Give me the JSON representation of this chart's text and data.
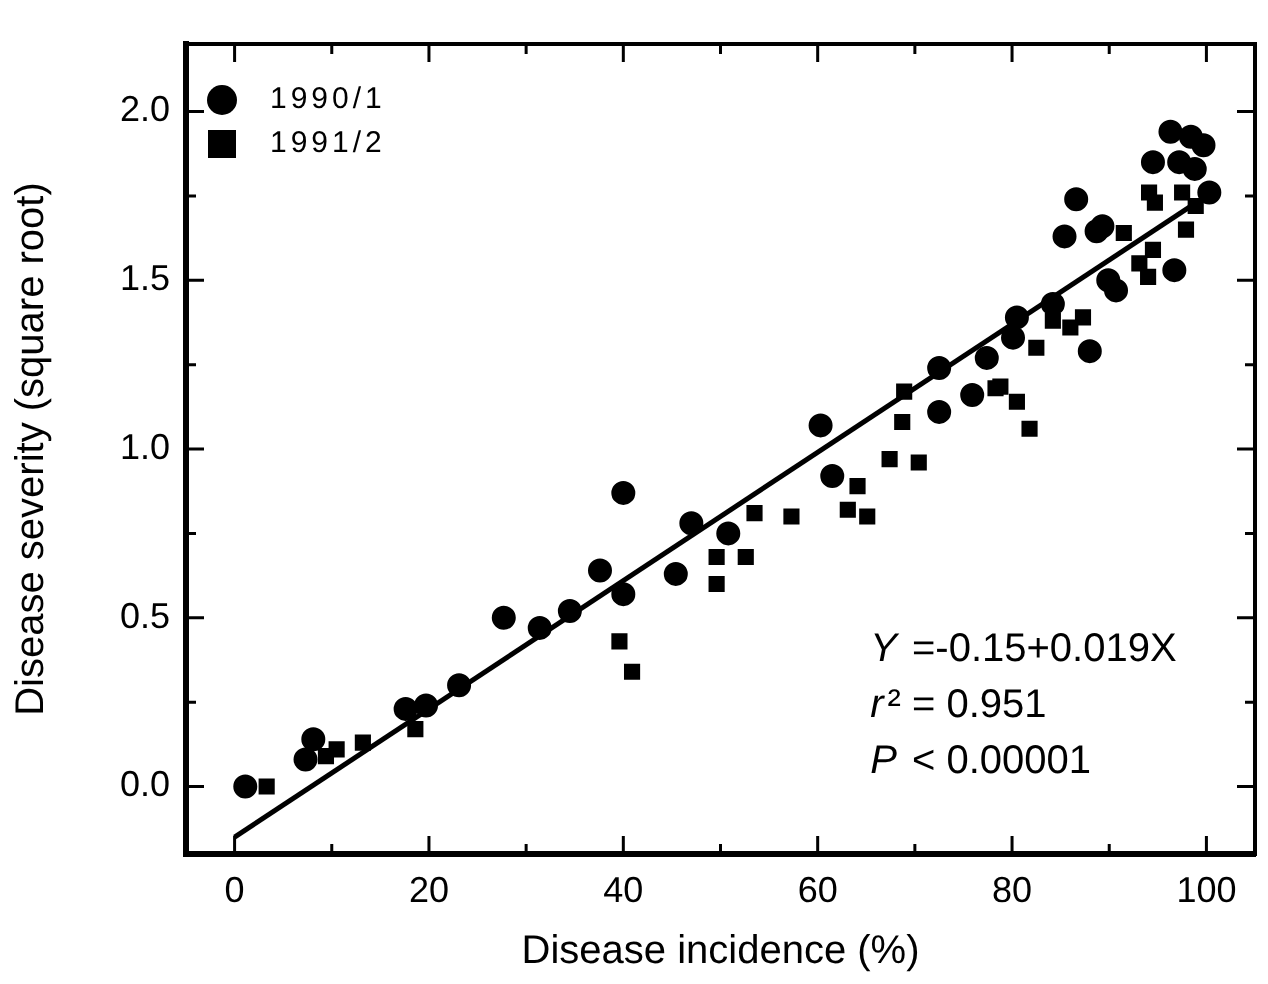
{
  "chart_data": {
    "type": "scatter",
    "xlabel": "Disease incidence (%)",
    "ylabel": "Disease severity (square root)",
    "xlim": [
      -5,
      105
    ],
    "ylim": [
      -0.2,
      2.2
    ],
    "xticks": [
      0,
      {
        "value": 10,
        "label": null
      },
      20,
      {
        "value": 30,
        "label": null
      },
      40,
      {
        "value": 50,
        "label": null
      },
      60,
      {
        "value": 70,
        "label": null
      },
      80,
      {
        "value": 90,
        "label": null
      },
      100
    ],
    "yticks": [
      {
        "value": 0,
        "label": "0.0"
      },
      {
        "value": 0.25,
        "label": null
      },
      {
        "value": 0.5,
        "label": "0.5"
      },
      {
        "value": 0.75,
        "label": null
      },
      {
        "value": 1,
        "label": "1.0"
      },
      {
        "value": 1.25,
        "label": null
      },
      {
        "value": 1.5,
        "label": "1.5"
      },
      {
        "value": 1.75,
        "label": null
      },
      {
        "value": 2,
        "label": "2.0"
      }
    ],
    "grid": false,
    "legend": "top left",
    "annotations": [
      "Y =-0.15+0.019X",
      "r² = 0.951",
      "P < 0.00001"
    ],
    "series": [
      {
        "name": "1990/1",
        "type": "scatter",
        "marker": "circle",
        "color": "#000000",
        "x": [
          1.1,
          8.1,
          7.3,
          17.6,
          19.7,
          23.1,
          27.7,
          31.4,
          34.5,
          37.6,
          40,
          40,
          45.4,
          47,
          50.8,
          60.3,
          61.5,
          72.5,
          72.5,
          75.9,
          77.4,
          80.1,
          80.5,
          84.2,
          85.4,
          86.6,
          88,
          88.7,
          89.3,
          89.9,
          90.7,
          94.5,
          96.3,
          96.7,
          97.2,
          98.4,
          98.8,
          99.7,
          100.3
        ],
        "values": [
          0.0,
          0.14,
          0.08,
          0.23,
          0.24,
          0.3,
          0.5,
          0.47,
          0.52,
          0.64,
          0.57,
          0.87,
          0.63,
          0.78,
          0.75,
          1.07,
          0.92,
          1.24,
          1.11,
          1.16,
          1.27,
          1.33,
          1.39,
          1.43,
          1.63,
          1.74,
          1.29,
          1.645,
          1.66,
          1.5,
          1.47,
          1.85,
          1.94,
          1.53,
          1.85,
          1.925,
          1.83,
          1.9,
          1.76
        ]
      },
      {
        "name": "1991/2",
        "type": "scatter",
        "marker": "square",
        "color": "#000000",
        "x": [
          3.3,
          10.5,
          9.4,
          13.2,
          18.6,
          39.6,
          40.9,
          49.6,
          49.6,
          52.6,
          53.5,
          57.3,
          63.1,
          64.1,
          65.1,
          67.4,
          68.7,
          68.9,
          70.4,
          78.3,
          78.8,
          80.5,
          81.8,
          82.5,
          84.2,
          86,
          87.3,
          91.5,
          93.1,
          94,
          94.1,
          94.5,
          94.7,
          97.5,
          97.9,
          98.9
        ],
        "values": [
          0.0,
          0.11,
          0.09,
          0.13,
          0.17,
          0.43,
          0.34,
          0.6,
          0.68,
          0.68,
          0.81,
          0.8,
          0.82,
          0.89,
          0.8,
          0.97,
          1.08,
          1.17,
          0.96,
          1.18,
          1.185,
          1.14,
          1.06,
          1.3,
          1.38,
          1.36,
          1.39,
          1.64,
          1.55,
          1.51,
          1.76,
          1.59,
          1.73,
          1.76,
          1.65,
          1.72
        ]
      },
      {
        "type": "line",
        "marker": "none",
        "line_style": "solid",
        "color": "#000000",
        "x": [
          0,
          100
        ],
        "values": [
          -0.15,
          1.75
        ]
      }
    ]
  }
}
